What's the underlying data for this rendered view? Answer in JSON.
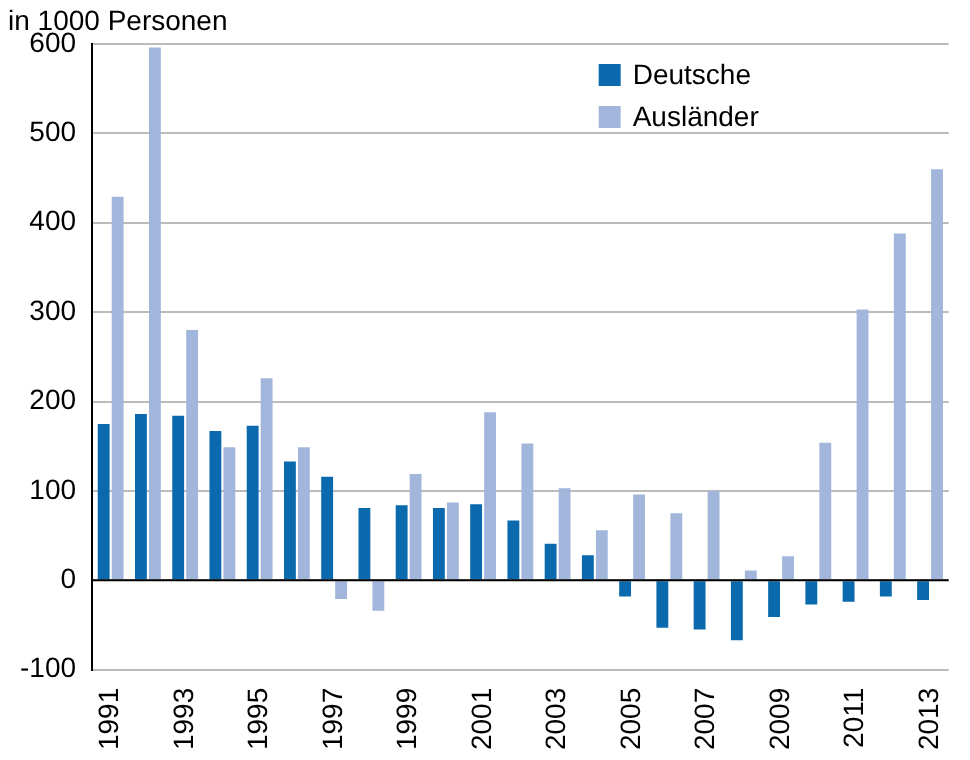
{
  "chart_data": {
    "type": "bar",
    "ylabel": "in 1000 Personen",
    "categories": [
      "1991",
      null,
      "1993",
      null,
      "1995",
      null,
      "1997",
      null,
      "1999",
      null,
      "2001",
      null,
      "2003",
      null,
      "2005",
      null,
      "2007",
      null,
      "2009",
      null,
      "2011",
      null,
      "2013"
    ],
    "series": [
      {
        "name": "Deutsche",
        "color": "#0a6aad",
        "values": [
          175,
          186,
          184,
          167,
          173,
          133,
          116,
          81,
          84,
          81,
          85,
          67,
          41,
          28,
          -18,
          -53,
          -55,
          -67,
          -41,
          -27,
          -24,
          -18,
          -22
        ]
      },
      {
        "name": "Ausländer",
        "color": "#a2b6dc",
        "values": [
          429,
          596,
          280,
          149,
          226,
          149,
          -21,
          -34,
          119,
          87,
          188,
          153,
          103,
          56,
          96,
          75,
          100,
          11,
          27,
          154,
          303,
          388,
          460
        ]
      }
    ],
    "ylim": [
      -100,
      600
    ],
    "yticks": [
      -100,
      0,
      100,
      200,
      300,
      400,
      500,
      600
    ],
    "grid": "y",
    "legend": "top right"
  }
}
